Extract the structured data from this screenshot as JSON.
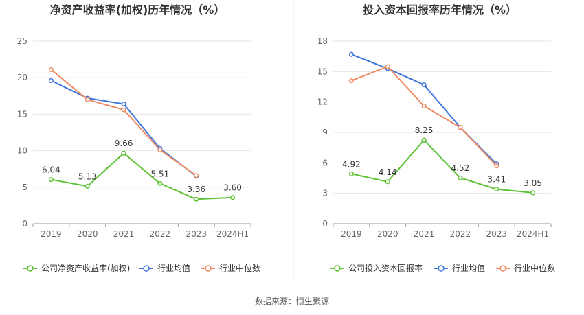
{
  "footer": {
    "source_label": "数据来源：恒生聚源"
  },
  "chart_data": [
    {
      "type": "line",
      "title": "净资产收益率(加权)历年情况（%）",
      "categories": [
        "2019",
        "2020",
        "2021",
        "2022",
        "2023",
        "2024H1"
      ],
      "ylim": [
        0,
        25
      ],
      "yticks": [
        0,
        5,
        10,
        15,
        20,
        25
      ],
      "grid": true,
      "legend_position": "bottom",
      "series": [
        {
          "name": "公司净资产收益率(加权)",
          "color": "#5cc334",
          "labels": true,
          "values": [
            6.04,
            5.13,
            9.66,
            5.51,
            3.36,
            3.6
          ],
          "value_labels": [
            "6.04",
            "5.13",
            "9.66",
            "5.51",
            "3.36",
            "3.60"
          ]
        },
        {
          "name": "行业均值",
          "color": "#3d75dc",
          "labels": false,
          "values": [
            19.6,
            17.2,
            16.4,
            10.3,
            6.5,
            null
          ]
        },
        {
          "name": "行业中位数",
          "color": "#ef8a62",
          "labels": false,
          "values": [
            21.1,
            17.0,
            15.6,
            10.1,
            6.6,
            null
          ]
        }
      ]
    },
    {
      "type": "line",
      "title": "投入资本回报率历年情况（%）",
      "categories": [
        "2019",
        "2020",
        "2021",
        "2022",
        "2023",
        "2024H1"
      ],
      "ylim": [
        0,
        18
      ],
      "yticks": [
        0,
        3,
        6,
        9,
        12,
        15,
        18
      ],
      "grid": true,
      "legend_position": "bottom",
      "series": [
        {
          "name": "公司投入资本回报率",
          "color": "#5cc334",
          "labels": true,
          "values": [
            4.92,
            4.14,
            8.25,
            4.52,
            3.41,
            3.05
          ],
          "value_labels": [
            "4.92",
            "4.14",
            "8.25",
            "4.52",
            "3.41",
            "3.05"
          ]
        },
        {
          "name": "行业均值",
          "color": "#3d75dc",
          "labels": false,
          "values": [
            16.7,
            15.3,
            13.7,
            9.5,
            5.9,
            null
          ]
        },
        {
          "name": "行业中位数",
          "color": "#ef8a62",
          "labels": false,
          "values": [
            14.1,
            15.5,
            11.6,
            9.5,
            5.7,
            null
          ]
        }
      ]
    }
  ]
}
